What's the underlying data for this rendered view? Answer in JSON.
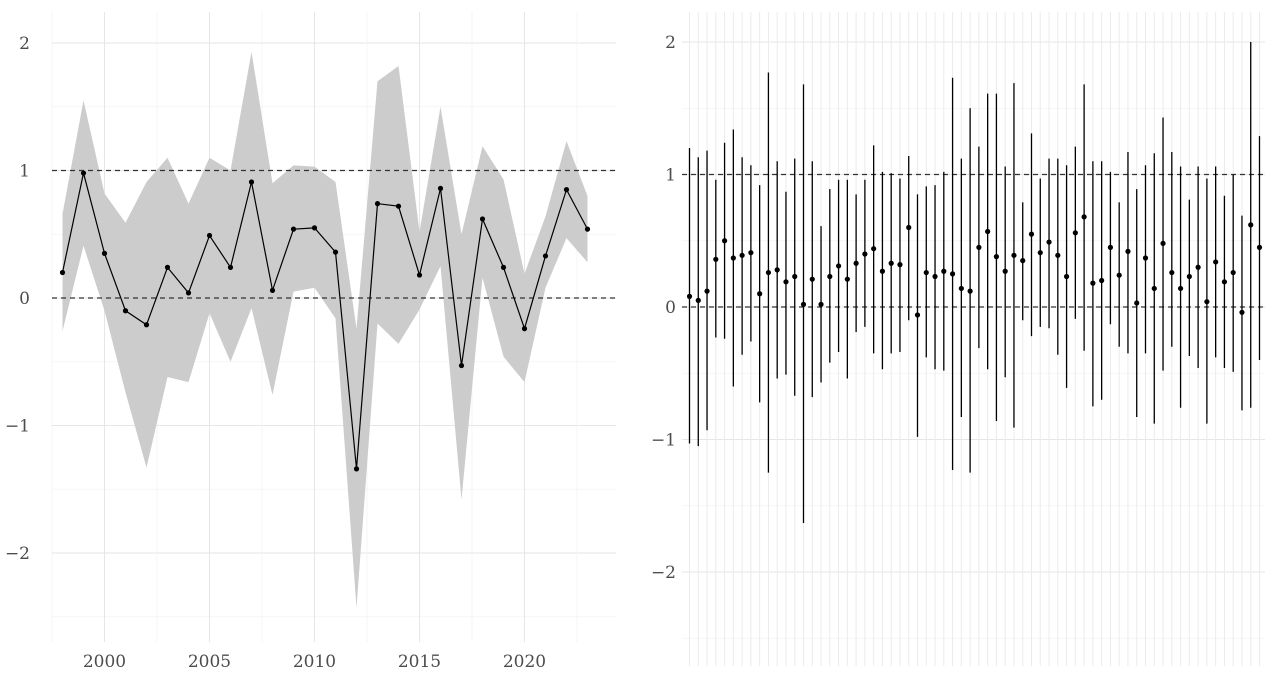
{
  "chart_data": [
    {
      "type": "line",
      "title": "",
      "xlabel": "",
      "ylabel": "",
      "xlim": [
        1997.6,
        2023.8
      ],
      "ylim": [
        -2.6,
        2.2
      ],
      "x_ticks": [
        2000,
        2005,
        2010,
        2015,
        2020
      ],
      "y_ticks": [
        2,
        1,
        0,
        -1,
        -2
      ],
      "y_tick_labels": [
        "2",
        "1",
        "0",
        "−1",
        "−2"
      ],
      "reference_lines": [
        1,
        0
      ],
      "grid": true,
      "series": [
        {
          "x": [
            1998,
            1999,
            2000,
            2001,
            2002,
            2003,
            2004,
            2005,
            2006,
            2007,
            2008,
            2009,
            2010,
            2011,
            2012,
            2013,
            2014,
            2015,
            2016,
            2017,
            2018,
            2019,
            2020,
            2021,
            2022,
            2023
          ],
          "values": [
            0.2,
            0.98,
            0.35,
            -0.1,
            -0.21,
            0.24,
            0.04,
            0.49,
            0.24,
            0.91,
            0.06,
            0.54,
            0.55,
            0.36,
            -1.34,
            0.74,
            0.72,
            0.18,
            0.86,
            -0.53,
            0.62,
            0.24,
            -0.24,
            0.33,
            0.85,
            0.54
          ],
          "lower": [
            -0.26,
            0.41,
            -0.1,
            -0.74,
            -1.33,
            -0.62,
            -0.66,
            -0.12,
            -0.5,
            -0.08,
            -0.76,
            0.05,
            0.08,
            -0.16,
            -2.43,
            -0.2,
            -0.36,
            -0.09,
            0.25,
            -1.58,
            0.16,
            -0.46,
            -0.66,
            0.08,
            0.47,
            0.28
          ],
          "upper": [
            0.66,
            1.55,
            0.82,
            0.59,
            0.91,
            1.1,
            0.74,
            1.1,
            1.0,
            1.93,
            0.9,
            1.04,
            1.03,
            0.91,
            -0.24,
            1.7,
            1.82,
            0.52,
            1.5,
            0.5,
            1.19,
            0.93,
            0.19,
            0.64,
            1.23,
            0.8
          ]
        }
      ]
    },
    {
      "type": "scatter",
      "title": "",
      "xlabel": "",
      "ylabel": "",
      "ylim": [
        -2.6,
        2.2
      ],
      "y_ticks": [
        2,
        1,
        0,
        -1,
        -2
      ],
      "y_tick_labels": [
        "2",
        "1",
        "0",
        "−1",
        "−2"
      ],
      "reference_lines": [
        1,
        0
      ],
      "grid": true,
      "x_tick_labels_shown": false,
      "series": [
        {
          "values": [
            0.08,
            0.05,
            0.12,
            0.36,
            0.5,
            0.37,
            0.39,
            0.41,
            0.1,
            0.26,
            0.28,
            0.19,
            0.23,
            0.02,
            0.21,
            0.02,
            0.23,
            0.31,
            0.21,
            0.33,
            0.4,
            0.44,
            0.27,
            0.33,
            0.32,
            0.6,
            -0.06,
            0.26,
            0.23,
            0.27,
            0.25,
            0.14,
            0.12,
            0.45,
            0.57,
            0.38,
            0.27,
            0.39,
            0.35,
            0.55,
            0.41,
            0.49,
            0.39,
            0.23,
            0.56,
            0.68,
            0.18,
            0.2,
            0.45,
            0.24,
            0.42,
            0.03,
            0.37,
            0.14,
            0.48,
            0.26,
            0.14,
            0.23,
            0.3,
            0.04,
            0.34,
            0.19,
            0.26,
            -0.04,
            0.62,
            0.45
          ],
          "lower": [
            -1.03,
            -1.05,
            -0.93,
            -0.23,
            -0.24,
            -0.6,
            -0.36,
            -0.26,
            -0.72,
            -1.25,
            -0.54,
            -0.51,
            -0.67,
            -1.63,
            -0.68,
            -0.57,
            -0.42,
            -0.34,
            -0.54,
            -0.19,
            -0.15,
            -0.35,
            -0.47,
            -0.35,
            -0.34,
            -0.1,
            -0.98,
            -0.38,
            -0.47,
            -0.48,
            -1.23,
            -0.83,
            -1.25,
            -0.31,
            -0.47,
            -0.86,
            -0.53,
            -0.91,
            -0.1,
            -0.22,
            -0.15,
            -0.16,
            -0.36,
            -0.61,
            -0.09,
            -0.33,
            -0.75,
            -0.7,
            -0.13,
            -0.3,
            -0.35,
            -0.83,
            -0.35,
            -0.88,
            -0.48,
            -0.3,
            -0.76,
            -0.37,
            -0.46,
            -0.88,
            -0.38,
            -0.46,
            -0.49,
            -0.78,
            -0.76,
            -0.4
          ],
          "upper": [
            1.2,
            1.13,
            1.18,
            0.96,
            1.24,
            1.34,
            1.13,
            1.07,
            0.92,
            1.77,
            1.1,
            0.87,
            1.12,
            1.68,
            1.1,
            0.61,
            0.89,
            0.96,
            0.96,
            0.85,
            0.96,
            1.22,
            1.02,
            1.01,
            0.97,
            1.14,
            0.85,
            0.91,
            0.92,
            1.02,
            1.73,
            1.12,
            1.5,
            1.21,
            1.61,
            1.61,
            1.06,
            1.69,
            0.79,
            1.31,
            0.97,
            1.12,
            1.12,
            1.07,
            1.21,
            1.68,
            1.1,
            1.1,
            1.02,
            0.79,
            1.17,
            0.89,
            1.07,
            1.16,
            1.43,
            1.17,
            1.06,
            0.81,
            1.06,
            0.97,
            1.06,
            0.84,
            1.0,
            0.69,
            2.0,
            1.29
          ]
        }
      ]
    }
  ]
}
